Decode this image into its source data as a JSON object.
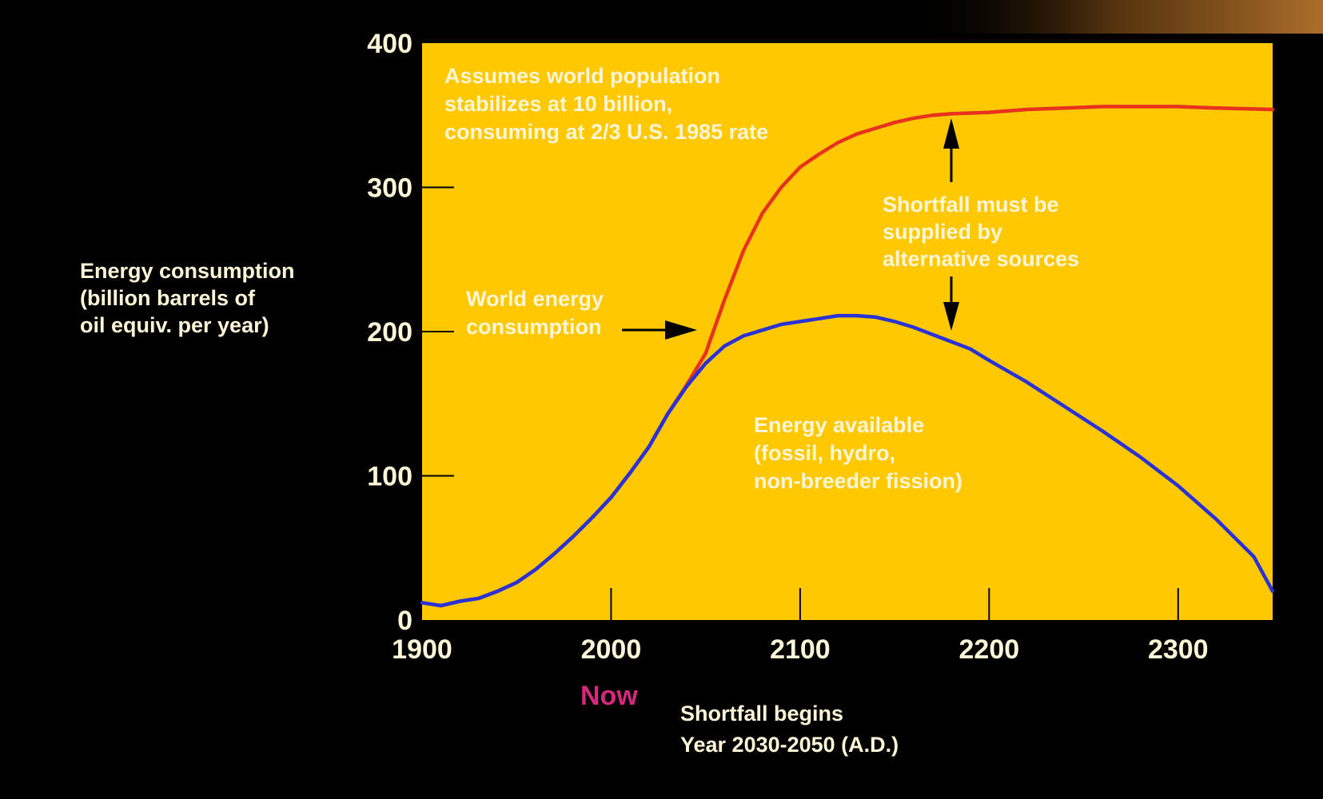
{
  "colors": {
    "background": "#000000",
    "plot_bg": "#FFC800",
    "consumption_line": "#E8321E",
    "available_line": "#2832D8",
    "label_text": "#FFF6D8",
    "now_text": "#D6297E",
    "tick": "#000000"
  },
  "chart_data": {
    "type": "line",
    "title": "",
    "xlabel": "",
    "ylabel": "Energy consumption (billion barrels of oil equiv. per year)",
    "ylabel_lines": [
      "Energy consumption",
      "(billion barrels of",
      "oil equiv. per year)"
    ],
    "xlim": [
      1900,
      2350
    ],
    "ylim": [
      0,
      400
    ],
    "x_ticks": [
      1900,
      2000,
      2100,
      2200,
      2300
    ],
    "x_tick_labels": [
      "1900",
      "2000",
      "2100",
      "2200",
      "2300"
    ],
    "y_ticks": [
      0,
      100,
      200,
      300,
      400
    ],
    "y_tick_labels": [
      "0",
      "100",
      "200",
      "300",
      "400"
    ],
    "grid": false,
    "legend": "none",
    "series": [
      {
        "name": "World energy consumption",
        "color": "#E8321E",
        "points": [
          [
            1900,
            12
          ],
          [
            1910,
            10
          ],
          [
            1920,
            13
          ],
          [
            1930,
            15
          ],
          [
            1940,
            20
          ],
          [
            1950,
            26
          ],
          [
            1960,
            35
          ],
          [
            1970,
            46
          ],
          [
            1980,
            58
          ],
          [
            1990,
            71
          ],
          [
            2000,
            85
          ],
          [
            2010,
            102
          ],
          [
            2020,
            120
          ],
          [
            2030,
            143
          ],
          [
            2040,
            163
          ],
          [
            2050,
            185
          ],
          [
            2060,
            222
          ],
          [
            2070,
            256
          ],
          [
            2080,
            282
          ],
          [
            2090,
            300
          ],
          [
            2100,
            314
          ],
          [
            2110,
            323
          ],
          [
            2120,
            331
          ],
          [
            2130,
            337
          ],
          [
            2140,
            341
          ],
          [
            2150,
            345
          ],
          [
            2160,
            348
          ],
          [
            2170,
            350
          ],
          [
            2180,
            351
          ],
          [
            2200,
            352
          ],
          [
            2220,
            354
          ],
          [
            2240,
            355
          ],
          [
            2260,
            356
          ],
          [
            2280,
            356
          ],
          [
            2300,
            356
          ],
          [
            2320,
            355
          ],
          [
            2350,
            354
          ]
        ]
      },
      {
        "name": "Energy available (fossil, hydro, non-breeder fission)",
        "color": "#2832D8",
        "points": [
          [
            1900,
            12
          ],
          [
            1910,
            10
          ],
          [
            1920,
            13
          ],
          [
            1930,
            15
          ],
          [
            1940,
            20
          ],
          [
            1950,
            26
          ],
          [
            1960,
            35
          ],
          [
            1970,
            46
          ],
          [
            1980,
            58
          ],
          [
            1990,
            71
          ],
          [
            2000,
            85
          ],
          [
            2010,
            102
          ],
          [
            2020,
            120
          ],
          [
            2030,
            143
          ],
          [
            2040,
            162
          ],
          [
            2050,
            178
          ],
          [
            2060,
            190
          ],
          [
            2070,
            197
          ],
          [
            2080,
            201
          ],
          [
            2090,
            205
          ],
          [
            2100,
            207
          ],
          [
            2110,
            209
          ],
          [
            2120,
            211
          ],
          [
            2130,
            211
          ],
          [
            2140,
            210
          ],
          [
            2150,
            207
          ],
          [
            2160,
            203
          ],
          [
            2170,
            198
          ],
          [
            2180,
            193
          ],
          [
            2190,
            188
          ],
          [
            2200,
            180
          ],
          [
            2220,
            165
          ],
          [
            2240,
            148
          ],
          [
            2260,
            131
          ],
          [
            2280,
            113
          ],
          [
            2300,
            93
          ],
          [
            2320,
            70
          ],
          [
            2340,
            44
          ],
          [
            2350,
            20
          ]
        ]
      }
    ],
    "annotations": {
      "assumption": [
        "Assumes world population",
        "stabilizes at 10 billion,",
        "consuming at 2/3 U.S. 1985 rate"
      ],
      "consumption_label": [
        "World energy",
        "consumption"
      ],
      "shortfall_note": [
        "Shortfall must be",
        "supplied by",
        "alternative sources"
      ],
      "available_label": [
        "Energy available",
        "(fossil, hydro,",
        "non-breeder fission)"
      ],
      "now_label": "Now",
      "shortfall_begins": [
        "Shortfall begins",
        "Year 2030-2050 (A.D.)"
      ]
    }
  }
}
